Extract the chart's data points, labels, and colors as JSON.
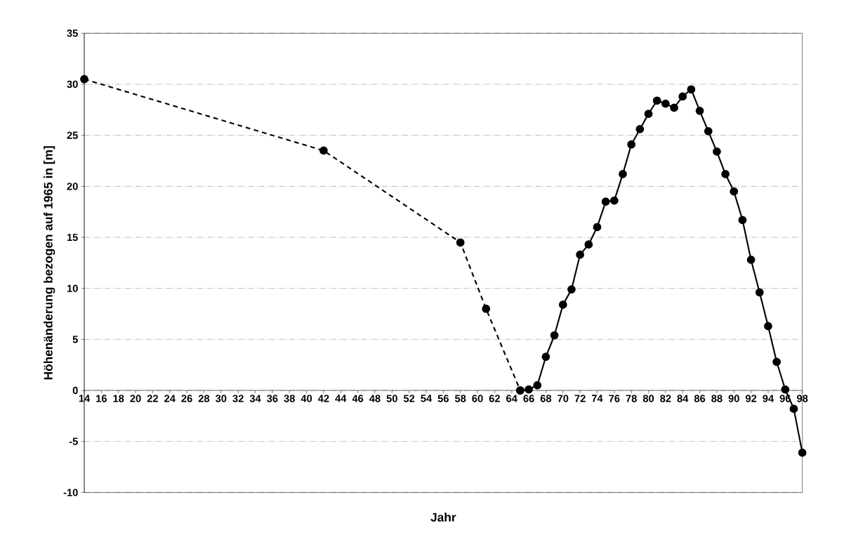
{
  "chart_data": {
    "type": "line",
    "xlabel": "Jahr",
    "ylabel": "Höhenänderung bezogen auf 1965 in [m]",
    "xlim": [
      14,
      98
    ],
    "ylim": [
      -10,
      35
    ],
    "xticks": [
      14,
      16,
      18,
      20,
      22,
      24,
      26,
      28,
      30,
      32,
      34,
      36,
      38,
      40,
      42,
      44,
      46,
      48,
      50,
      52,
      54,
      56,
      58,
      60,
      62,
      64,
      66,
      68,
      70,
      72,
      74,
      76,
      78,
      80,
      82,
      84,
      86,
      88,
      90,
      92,
      94,
      96,
      98
    ],
    "yticks": [
      -10,
      -5,
      0,
      5,
      10,
      15,
      20,
      25,
      30,
      35
    ],
    "grid": "y",
    "marker": "circle",
    "series": [
      {
        "color": "#000000",
        "line_style": "dashed",
        "x": [
          14,
          42,
          58,
          61,
          65
        ],
        "values": [
          30.5,
          23.5,
          14.5,
          8.0,
          0.0
        ]
      },
      {
        "color": "#000000",
        "line_style": "solid",
        "x": [
          65,
          66,
          67,
          68,
          69,
          70,
          71,
          72,
          73,
          74,
          75,
          76,
          77,
          78,
          79,
          80,
          81,
          82,
          83,
          84,
          85,
          86,
          87,
          88,
          89,
          90,
          91,
          92,
          93,
          94,
          95,
          96,
          97,
          98
        ],
        "values": [
          0.0,
          0.1,
          0.5,
          3.3,
          5.4,
          8.4,
          9.9,
          13.3,
          14.3,
          16.0,
          18.5,
          18.6,
          21.2,
          24.1,
          25.6,
          27.1,
          28.4,
          28.1,
          27.7,
          28.8,
          29.5,
          27.4,
          25.4,
          23.4,
          21.2,
          19.5,
          16.7,
          12.8,
          9.6,
          6.3,
          2.8,
          0.1,
          -1.8,
          -6.1
        ]
      }
    ]
  }
}
